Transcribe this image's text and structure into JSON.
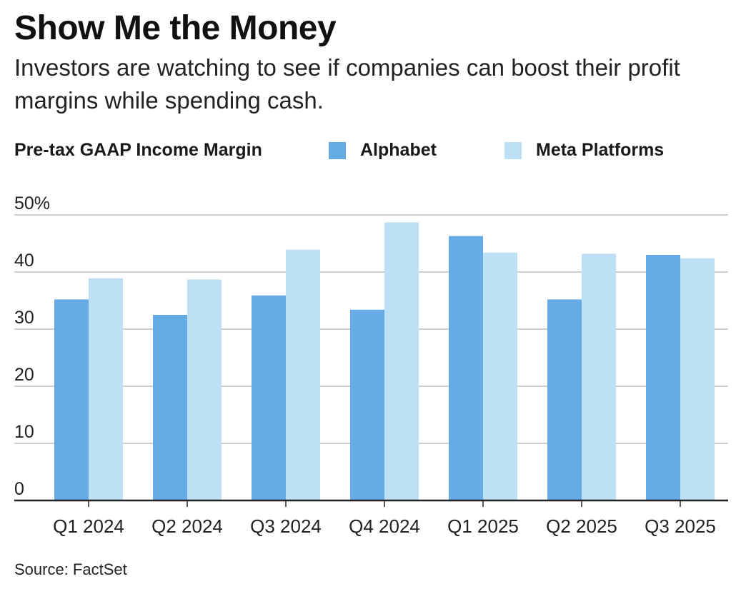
{
  "title": "Show Me the Money",
  "subtitle": "Investors are watching to see if companies can boost their profit margins while spending cash.",
  "legend": {
    "measure_label": "Pre-tax GAAP Income Margin",
    "items": [
      {
        "label": "Alphabet",
        "color": "#66ABE6"
      },
      {
        "label": "Meta Platforms",
        "color": "#BDE0F5"
      }
    ]
  },
  "source": "Source: FactSet",
  "chart_data": {
    "type": "bar",
    "title": "Show Me the Money",
    "ylabel": "Pre-tax GAAP Income Margin",
    "xlabel": "",
    "categories": [
      "Q1 2024",
      "Q2 2024",
      "Q3 2024",
      "Q4 2024",
      "Q1 2025",
      "Q2 2025",
      "Q3 2025"
    ],
    "series": [
      {
        "name": "Alphabet",
        "color": "#66ABE6",
        "values": [
          35.2,
          32.5,
          35.9,
          33.4,
          46.3,
          35.2,
          43.0
        ]
      },
      {
        "name": "Meta Platforms",
        "color": "#BDE0F5",
        "values": [
          38.9,
          38.7,
          43.9,
          48.7,
          43.4,
          43.2,
          42.4
        ]
      }
    ],
    "ylim": [
      0,
      50
    ],
    "yticks": [
      0,
      10,
      20,
      30,
      40,
      50
    ],
    "ytick_labels": [
      "0",
      "10",
      "20",
      "30",
      "40",
      "50%"
    ],
    "grid": true,
    "legend_position": "top"
  }
}
